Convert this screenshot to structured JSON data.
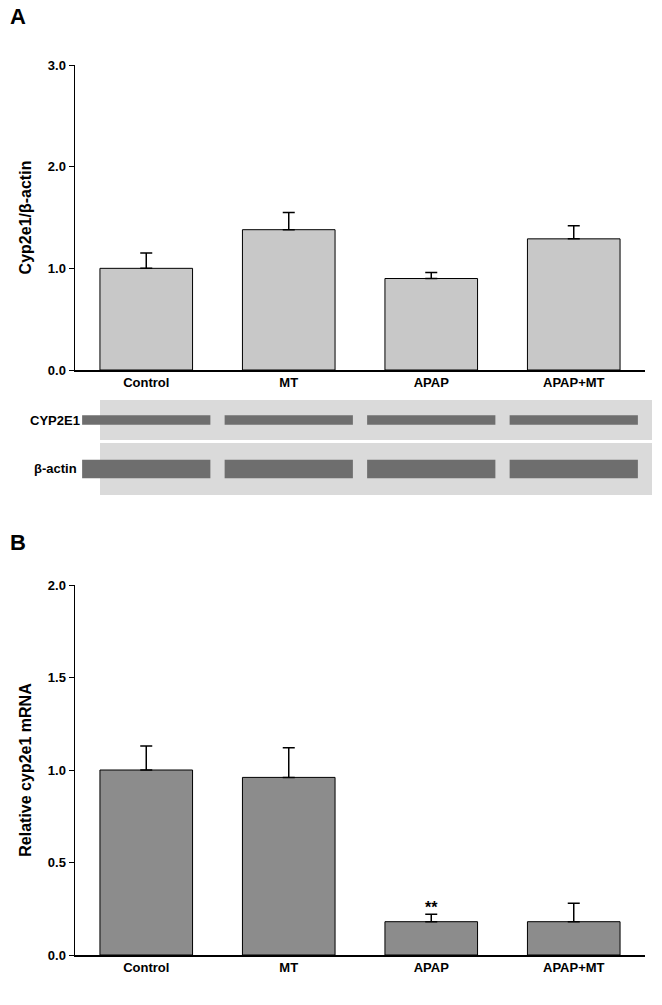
{
  "chart_data": [
    {
      "type": "bar",
      "title": "A",
      "categories": [
        "Control",
        "MT",
        "APAP",
        "APAP+MT"
      ],
      "values": [
        1.0,
        1.38,
        0.9,
        1.29
      ],
      "errors": [
        0.15,
        0.17,
        0.06,
        0.13
      ],
      "color": "#c8c8c8",
      "y_label": "Cyp2e1/β-actin",
      "ylim": [
        0,
        3
      ],
      "yticks": [
        {
          "value": 0,
          "label": "0.0"
        },
        {
          "value": 1,
          "label": "1.0"
        },
        {
          "value": 2,
          "label": "2.0"
        },
        {
          "value": 3,
          "label": "3.0"
        }
      ],
      "grid": false,
      "blot": {
        "labels": [
          "CYP2E1",
          "β-actin"
        ]
      }
    },
    {
      "type": "bar",
      "title": "B",
      "categories": [
        "Control",
        "MT",
        "APAP",
        "APAP+MT"
      ],
      "values": [
        1.0,
        0.96,
        0.18,
        0.18
      ],
      "errors": [
        0.13,
        0.16,
        0.04,
        0.1
      ],
      "color": "#8c8c8c",
      "y_label": "Relative cyp2e1 mRNA",
      "ylim": [
        0,
        2
      ],
      "yticks": [
        {
          "value": 0,
          "label": "0.0"
        },
        {
          "value": 0.5,
          "label": "0.5"
        },
        {
          "value": 1,
          "label": "1.0"
        },
        {
          "value": 1.5,
          "label": "1.5"
        },
        {
          "value": 2,
          "label": "2.0"
        }
      ],
      "grid": false,
      "annotations": [
        {
          "category": "APAP",
          "text": "**"
        }
      ]
    }
  ]
}
